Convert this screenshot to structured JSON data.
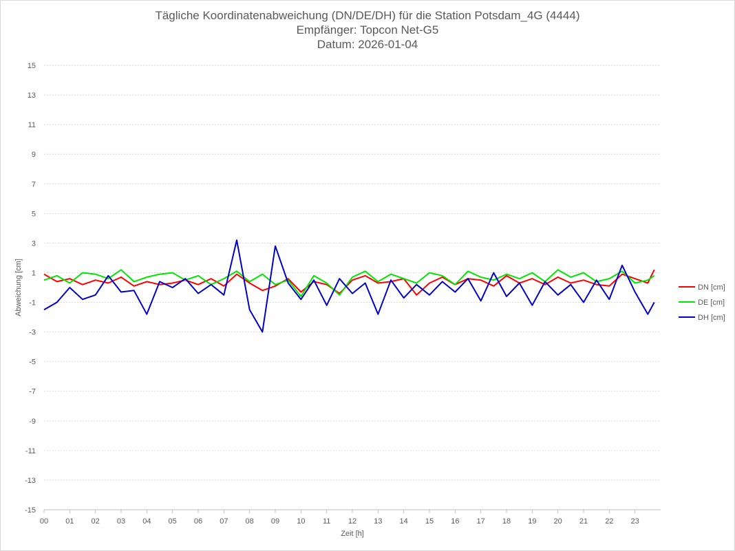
{
  "chart_data": {
    "type": "line",
    "title": "Tägliche Koordinatenabweichung (DN/DE/DH) für die Station Potsdam_4G (4444)",
    "subtitle_1": "Empfänger: Topcon Net-G5",
    "subtitle_2": "Datum: 2026-01-04",
    "xlabel": "Zeit [h]",
    "ylabel": "Abweichung [cm]",
    "xlim": [
      0,
      24
    ],
    "ylim": [
      -15,
      15
    ],
    "x_ticks": [
      "00",
      "01",
      "02",
      "03",
      "04",
      "05",
      "06",
      "07",
      "08",
      "09",
      "10",
      "11",
      "12",
      "13",
      "14",
      "15",
      "16",
      "17",
      "18",
      "19",
      "20",
      "21",
      "22",
      "23"
    ],
    "y_ticks": [
      "15",
      "13",
      "11",
      "9",
      "7",
      "5",
      "3",
      "1",
      "-1",
      "-3",
      "-5",
      "-7",
      "-9",
      "-11",
      "-13",
      "-15"
    ],
    "grid": "horizontal-dotted",
    "legend_position": "right",
    "series": [
      {
        "name": "DN [cm]",
        "color": "#ff0000",
        "x": [
          0,
          0.5,
          1,
          1.5,
          2,
          2.5,
          3,
          3.5,
          4,
          4.5,
          5,
          5.5,
          6,
          6.5,
          7,
          7.5,
          8,
          8.5,
          9,
          9.5,
          10,
          10.5,
          11,
          11.5,
          12,
          12.5,
          13,
          13.5,
          14,
          14.5,
          15,
          15.5,
          16,
          16.5,
          17,
          17.5,
          18,
          18.5,
          19,
          19.5,
          20,
          20.5,
          21,
          21.5,
          22,
          22.5,
          23,
          23.5,
          23.75
        ],
        "values": [
          0.9,
          0.4,
          0.6,
          0.2,
          0.5,
          0.3,
          0.7,
          0.1,
          0.4,
          0.2,
          0.3,
          0.5,
          0.2,
          0.6,
          0.1,
          0.9,
          0.3,
          -0.2,
          0.1,
          0.6,
          -0.3,
          0.4,
          0.2,
          -0.4,
          0.5,
          0.8,
          0.3,
          0.4,
          0.6,
          -0.5,
          0.3,
          0.7,
          0.2,
          0.6,
          0.5,
          0.1,
          0.8,
          0.3,
          0.6,
          0.2,
          0.7,
          0.3,
          0.5,
          0.2,
          0.1,
          0.9,
          0.6,
          0.3,
          1.2
        ]
      },
      {
        "name": "DE [cm]",
        "color": "#00e600",
        "x": [
          0,
          0.5,
          1,
          1.5,
          2,
          2.5,
          3,
          3.5,
          4,
          4.5,
          5,
          5.5,
          6,
          6.5,
          7,
          7.5,
          8,
          8.5,
          9,
          9.5,
          10,
          10.5,
          11,
          11.5,
          12,
          12.5,
          13,
          13.5,
          14,
          14.5,
          15,
          15.5,
          16,
          16.5,
          17,
          17.5,
          18,
          18.5,
          19,
          19.5,
          20,
          20.5,
          21,
          21.5,
          22,
          22.5,
          23,
          23.5,
          23.75
        ],
        "values": [
          0.5,
          0.8,
          0.3,
          1.0,
          0.9,
          0.6,
          1.2,
          0.4,
          0.7,
          0.9,
          1.0,
          0.5,
          0.8,
          0.2,
          0.6,
          1.1,
          0.4,
          0.9,
          0.2,
          0.5,
          -0.6,
          0.8,
          0.3,
          -0.5,
          0.7,
          1.1,
          0.4,
          0.9,
          0.6,
          0.3,
          1.0,
          0.8,
          0.2,
          1.1,
          0.7,
          0.5,
          0.9,
          0.6,
          1.0,
          0.4,
          1.2,
          0.7,
          1.0,
          0.4,
          0.6,
          1.1,
          0.3,
          0.5,
          0.8
        ]
      },
      {
        "name": "DH [cm]",
        "color": "#0000cc",
        "x": [
          0,
          0.5,
          1,
          1.5,
          2,
          2.5,
          3,
          3.5,
          4,
          4.5,
          5,
          5.5,
          6,
          6.5,
          7,
          7.5,
          8,
          8.5,
          9,
          9.5,
          10,
          10.5,
          11,
          11.5,
          12,
          12.5,
          13,
          13.5,
          14,
          14.5,
          15,
          15.5,
          16,
          16.5,
          17,
          17.5,
          18,
          18.5,
          19,
          19.5,
          20,
          20.5,
          21,
          21.5,
          22,
          22.5,
          23,
          23.5,
          23.75
        ],
        "values": [
          -1.5,
          -1.0,
          0.0,
          -0.8,
          -0.5,
          0.8,
          -0.3,
          -0.2,
          -1.8,
          0.4,
          0.0,
          0.6,
          -0.4,
          0.2,
          -0.5,
          3.2,
          -1.5,
          -3.0,
          2.8,
          0.3,
          -0.8,
          0.5,
          -1.2,
          0.6,
          -0.4,
          0.3,
          -1.8,
          0.5,
          -0.7,
          0.2,
          -0.5,
          0.4,
          -0.3,
          0.6,
          -0.9,
          1.0,
          -0.6,
          0.3,
          -1.2,
          0.4,
          -0.5,
          0.2,
          -1.0,
          0.5,
          -0.8,
          1.5,
          -0.3,
          -1.8,
          -1.0
        ]
      }
    ]
  }
}
